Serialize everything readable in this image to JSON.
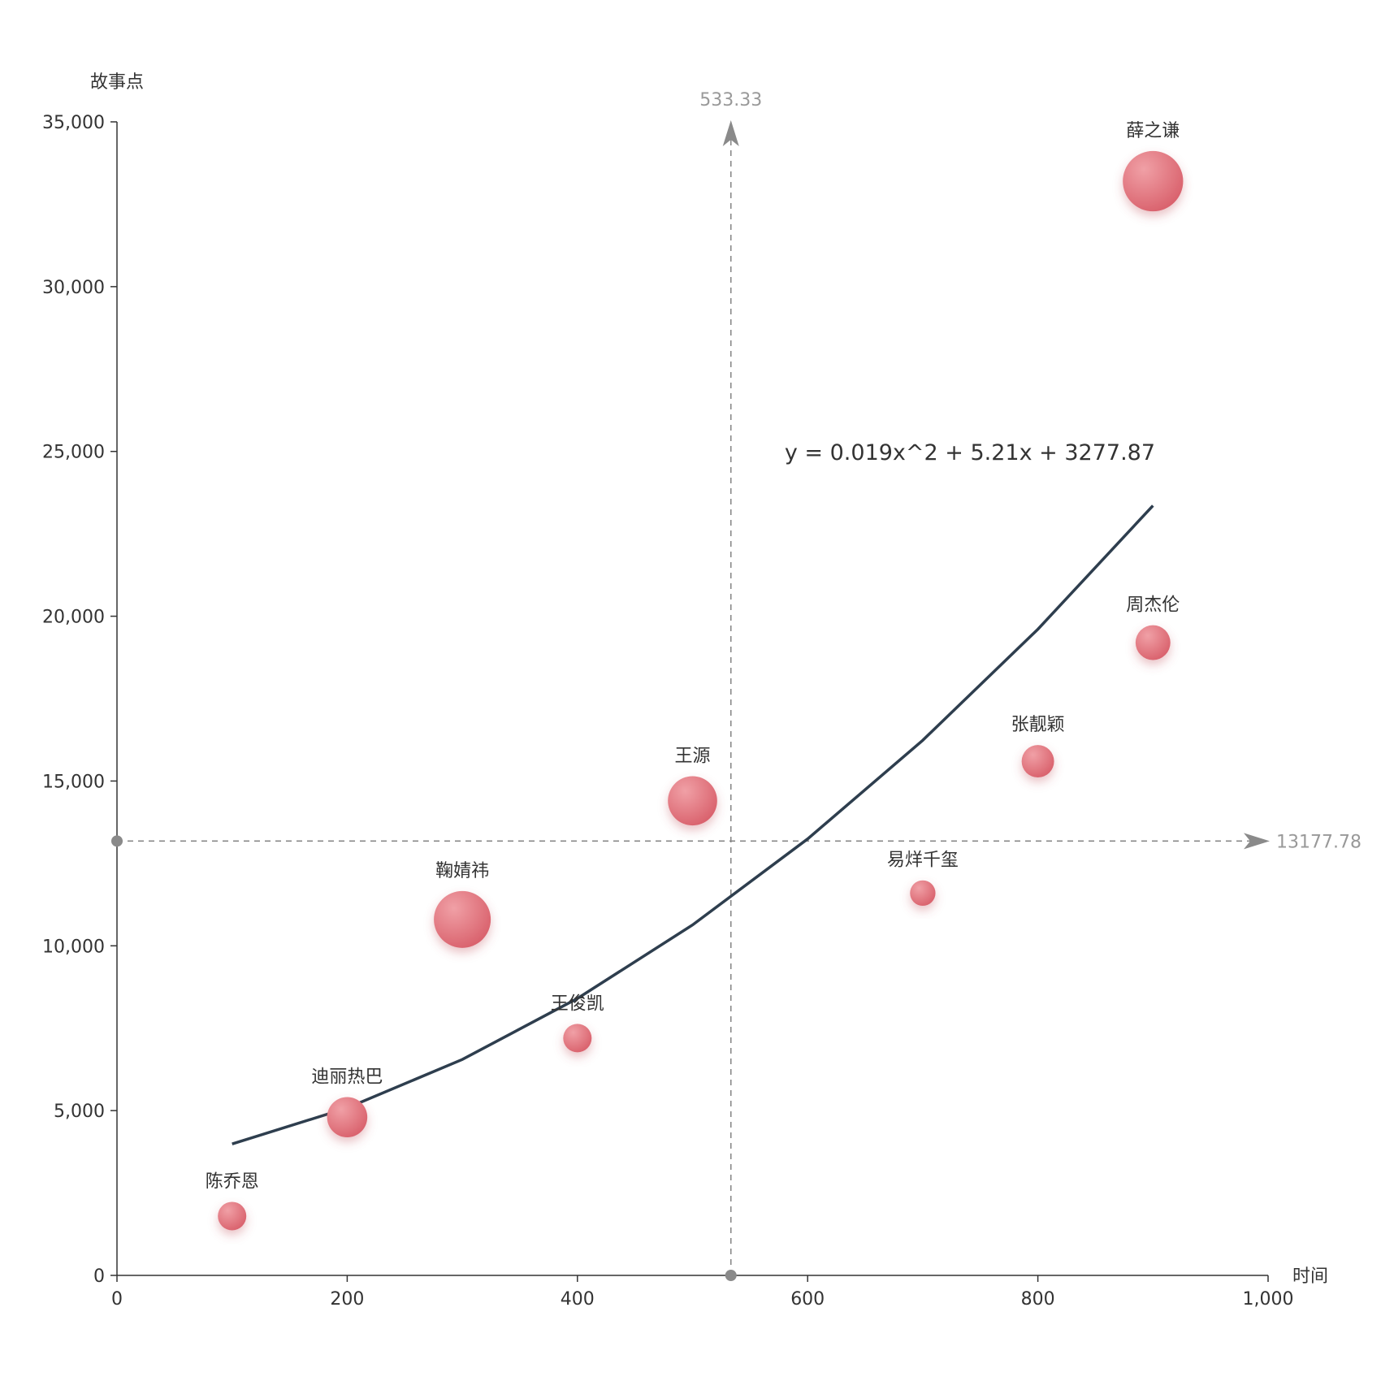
{
  "chart_data": {
    "type": "scatter",
    "subtype": "bubble",
    "xlabel": "时间",
    "ylabel": "故事点",
    "xlim": [
      0,
      1000
    ],
    "ylim": [
      0,
      35000
    ],
    "x_ticks": [
      0,
      200,
      400,
      600,
      800,
      1000
    ],
    "x_tick_labels": [
      "0",
      "200",
      "400",
      "600",
      "800",
      "1,000"
    ],
    "y_ticks": [
      0,
      5000,
      10000,
      15000,
      20000,
      25000,
      30000,
      35000
    ],
    "y_tick_labels": [
      "0",
      "5,000",
      "10,000",
      "15,000",
      "20,000",
      "25,000",
      "30,000",
      "35,000"
    ],
    "grid": false,
    "points": [
      {
        "label": "陈乔恩",
        "x": 100,
        "y": 1800,
        "size": 1
      },
      {
        "label": "迪丽热巴",
        "x": 200,
        "y": 4800,
        "size": 2
      },
      {
        "label": "鞠婧祎",
        "x": 300,
        "y": 10800,
        "size": 4
      },
      {
        "label": "王俊凯",
        "x": 400,
        "y": 7200,
        "size": 1
      },
      {
        "label": "王源",
        "x": 500,
        "y": 14400,
        "size": 3
      },
      {
        "label": "易烊千玺",
        "x": 700,
        "y": 11600,
        "size": 0.8
      },
      {
        "label": "张靓颖",
        "x": 800,
        "y": 15600,
        "size": 1.3
      },
      {
        "label": "周杰伦",
        "x": 900,
        "y": 19200,
        "size": 1.5
      },
      {
        "label": "薛之谦",
        "x": 900,
        "y": 33200,
        "size": 4.5
      }
    ],
    "regression": {
      "equation": "y = 0.019x^2 + 5.21x + 3277.87",
      "coefficients": {
        "a": 0.019,
        "b": 5.21,
        "c": 3277.87
      },
      "x_range": [
        100,
        900
      ]
    },
    "reference_lines": {
      "x_mean": {
        "value": 533.33,
        "label": "533.33"
      },
      "y_mean": {
        "value": 13177.78,
        "label": "13177.78"
      }
    },
    "colors": {
      "bubble": "#e06c75",
      "bubble_highlight": "#f0a0a6",
      "fit_line": "#2e3e4e",
      "reference": "#8a8a8a",
      "axis": "#333333"
    }
  }
}
